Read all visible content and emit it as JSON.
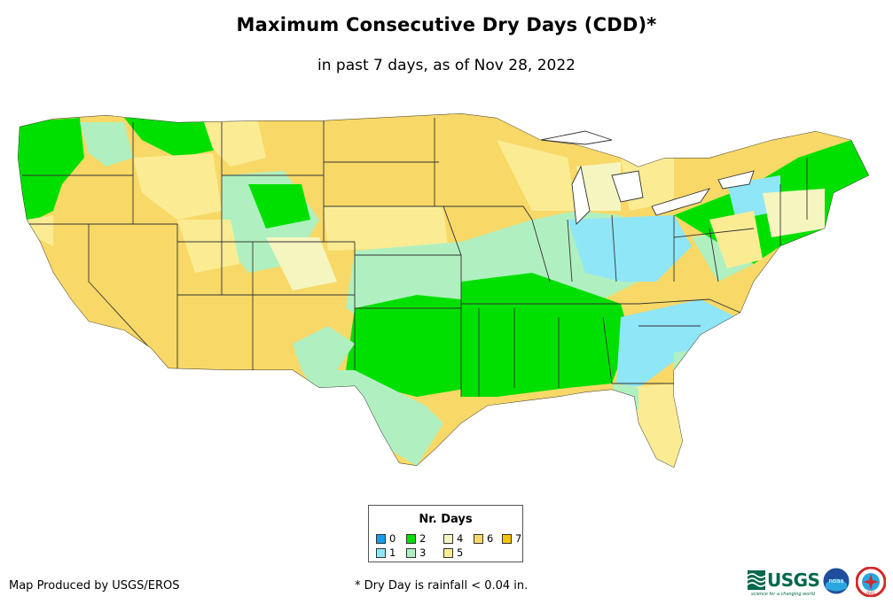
{
  "title": "Maximum Consecutive Dry Days (CDD)*",
  "subtitle": "in past 7 days, as of Nov 28, 2022",
  "legend": {
    "title": "Nr. Days",
    "items": [
      {
        "label": "0",
        "color": "#1a9be6"
      },
      {
        "label": "1",
        "color": "#8fe6f7"
      },
      {
        "label": "2",
        "color": "#00e000"
      },
      {
        "label": "3",
        "color": "#b0f0c0"
      },
      {
        "label": "4",
        "color": "#f5f5c0"
      },
      {
        "label": "5",
        "color": "#fbec94"
      },
      {
        "label": "6",
        "color": "#f8d867"
      },
      {
        "label": "7",
        "color": "#f5c300"
      }
    ]
  },
  "footer": {
    "credit": "Map Produced by USGS/EROS",
    "footnote": "* Dry Day is rainfall < 0.04 in."
  },
  "logos": {
    "usgs_text": "USGS",
    "usgs_tagline": "science for a changing world",
    "noaa_text": "noaa",
    "nws_text": "NWS"
  }
}
